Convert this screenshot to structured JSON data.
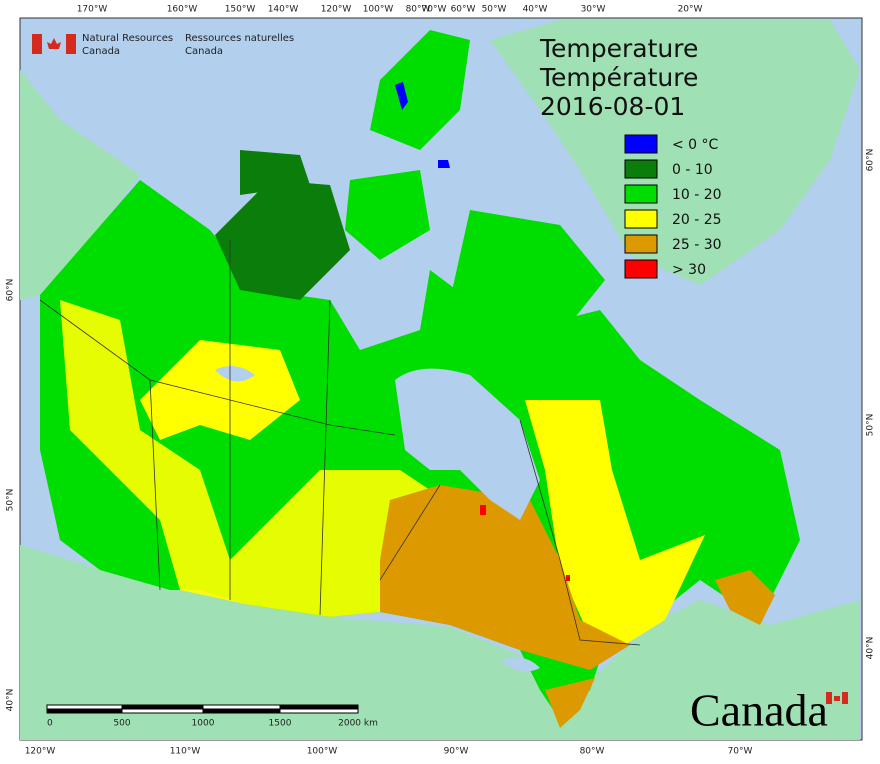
{
  "header": {
    "agency_en": [
      "Natural Resources",
      "Canada"
    ],
    "agency_fr": [
      "Ressources naturelles",
      "Canada"
    ]
  },
  "title": [
    "Temperature",
    "Température",
    "2016-08-01"
  ],
  "legend": [
    {
      "label": "< 0 °C",
      "color": "#0000ff"
    },
    {
      "label": "0 - 10",
      "color": "#0a7d0a"
    },
    {
      "label": "10 - 20",
      "color": "#00dd00"
    },
    {
      "label": "20 - 25",
      "color": "#ffff00"
    },
    {
      "label": "25 - 30",
      "color": "#dd9900"
    },
    {
      "label": "> 30",
      "color": "#ff0000"
    }
  ],
  "graticule": {
    "top": [
      "170°W",
      "160°W",
      "150°W",
      "140°W",
      "120°W",
      "100°W",
      "80°W",
      "70°W",
      "60°W",
      "50°W",
      "40°W",
      "30°W",
      "20°W"
    ],
    "bottom": [
      "120°W",
      "110°W",
      "100°W",
      "90°W",
      "80°W",
      "70°W"
    ],
    "left": [
      "60°N",
      "50°N",
      "40°N"
    ],
    "right": [
      "60°N",
      "50°N",
      "40°N"
    ]
  },
  "scale_bar": {
    "labels": [
      "0",
      "500",
      "1000",
      "1500",
      "2000 km"
    ]
  },
  "wordmark": "Canada"
}
